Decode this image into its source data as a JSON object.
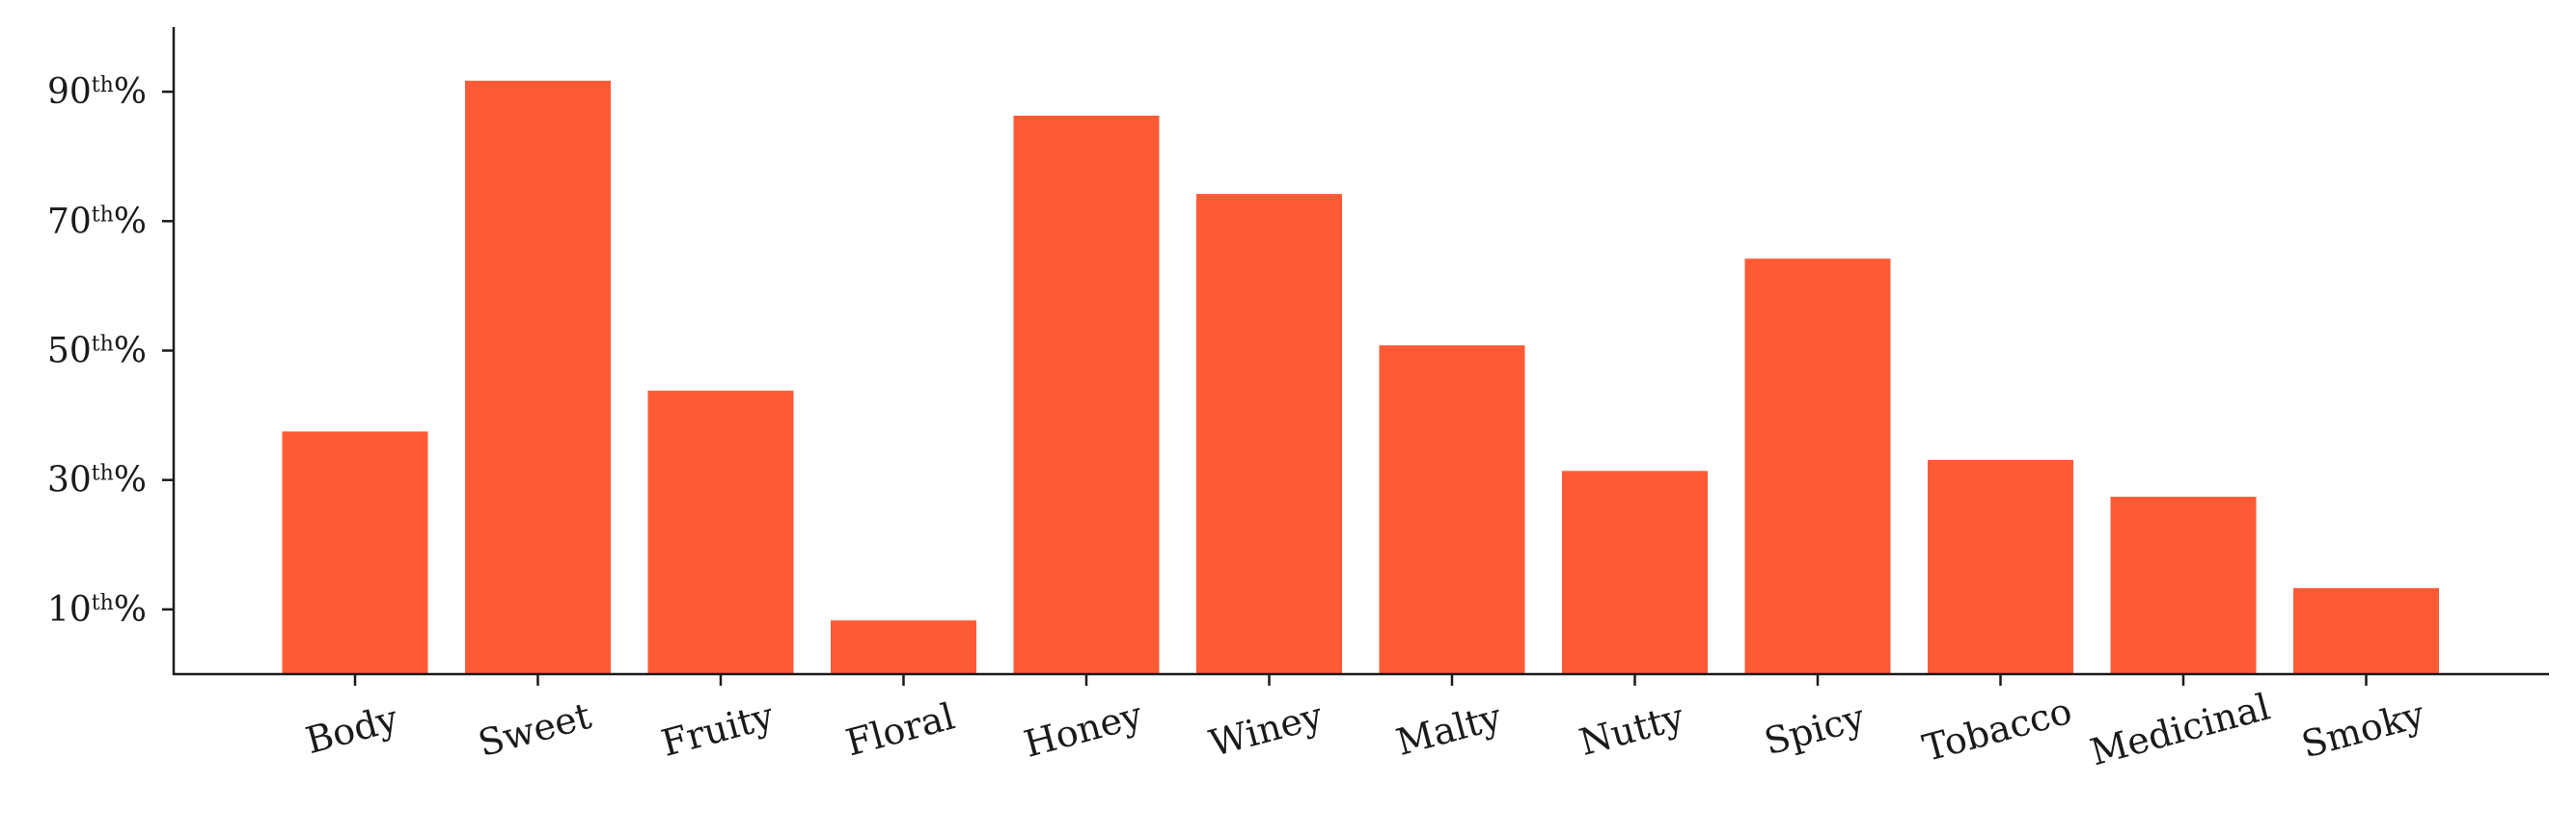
{
  "chart_data": {
    "type": "bar",
    "title": "",
    "xlabel": "",
    "ylabel": "",
    "categories": [
      "Body",
      "Sweet",
      "Fruity",
      "Floral",
      "Honey",
      "Winey",
      "Malty",
      "Nutty",
      "Spicy",
      "Tobacco",
      "Medicinal",
      "Smoky"
    ],
    "values": [
      37.5,
      91.7,
      43.8,
      8.3,
      86.3,
      74.2,
      50.8,
      31.4,
      64.2,
      33.1,
      27.4,
      13.3
    ],
    "ylim": [
      0,
      100
    ],
    "yticks": [
      {
        "value": 10,
        "num": "10",
        "sup": "th",
        "suffix": "%"
      },
      {
        "value": 30,
        "num": "30",
        "sup": "th",
        "suffix": "%"
      },
      {
        "value": 50,
        "num": "50",
        "sup": "th",
        "suffix": "%"
      },
      {
        "value": 70,
        "num": "70",
        "sup": "th",
        "suffix": "%"
      },
      {
        "value": 90,
        "num": "90",
        "sup": "th",
        "suffix": "%"
      }
    ],
    "grid": false,
    "bar_color": "#ff5a36",
    "axis_color": "#1a1a1a"
  }
}
